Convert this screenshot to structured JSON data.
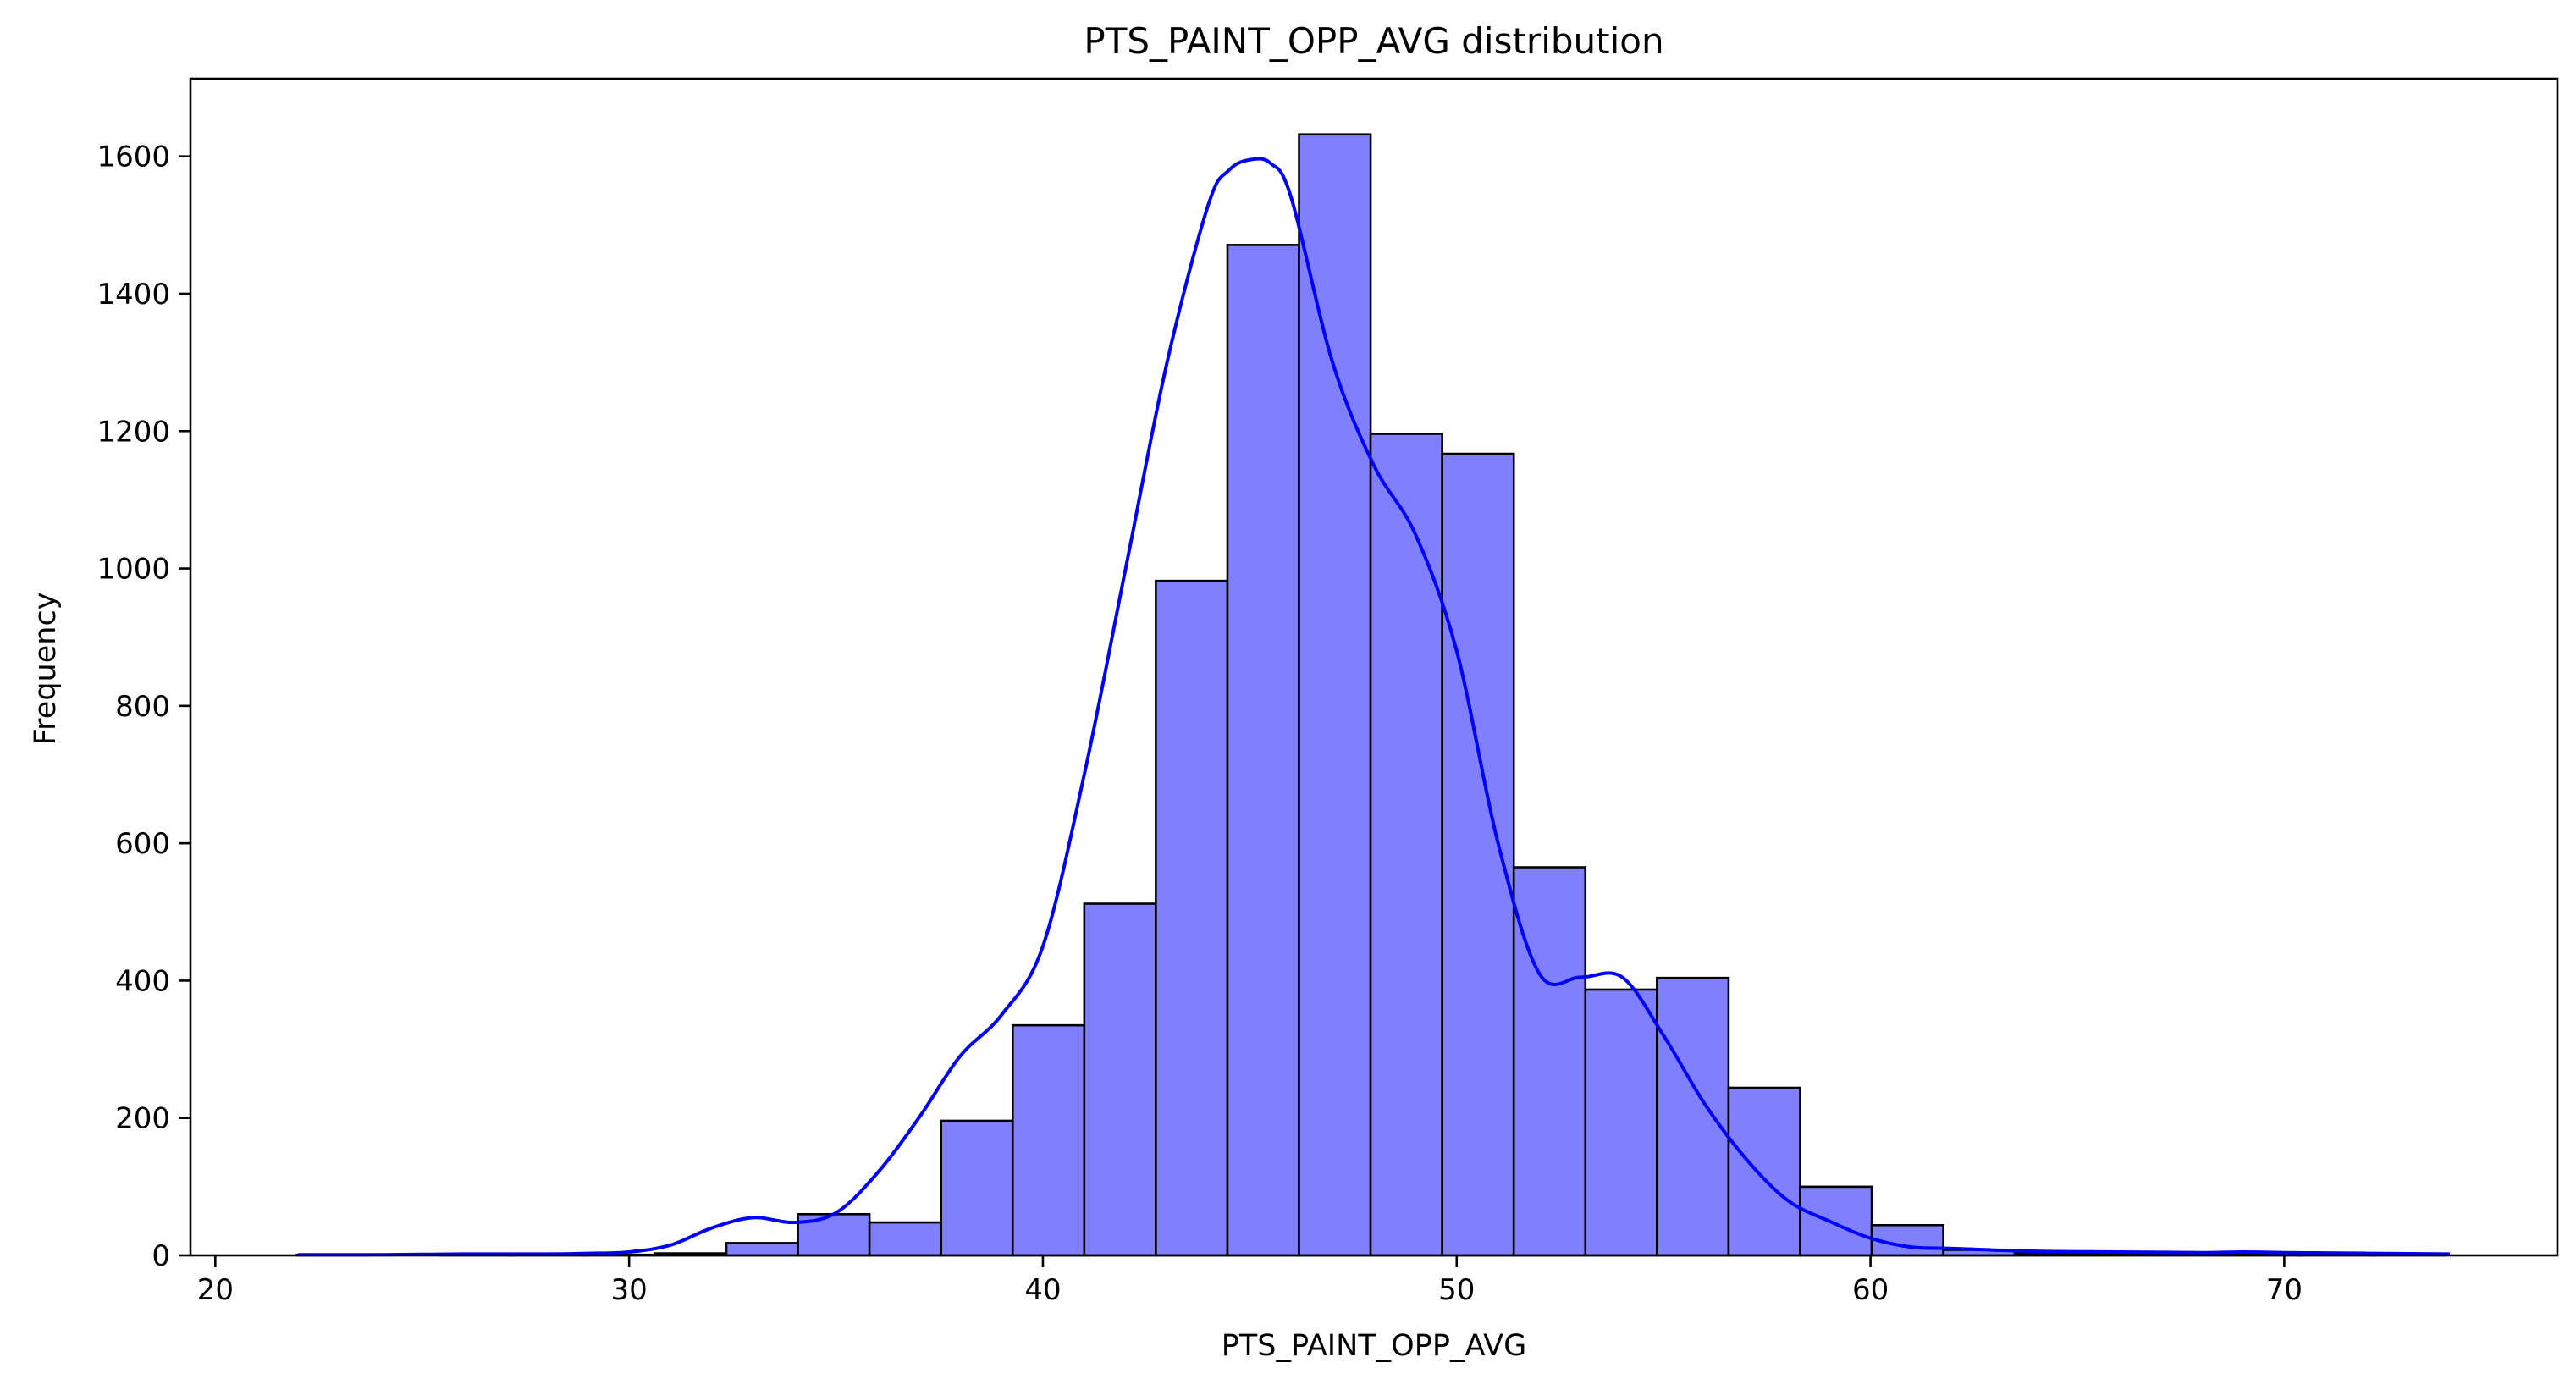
{
  "chart_data": {
    "type": "bar",
    "title": "PTS_PAINT_OPP_AVG distribution",
    "xlabel": "PTS_PAINT_OPP_AVG",
    "ylabel": "Frequency",
    "xlim": [
      19.4,
      76.6
    ],
    "ylim": [
      0,
      1713
    ],
    "x_ticks": [
      20,
      30,
      40,
      50,
      60,
      70
    ],
    "y_ticks": [
      0,
      200,
      400,
      600,
      800,
      1000,
      1200,
      1400,
      1600
    ],
    "grid": false,
    "legend": "none",
    "bin_edges": [
      21.97,
      23.7,
      25.43,
      27.16,
      28.89,
      30.62,
      32.35,
      34.08,
      35.81,
      37.54,
      39.27,
      41.0,
      42.73,
      44.46,
      46.19,
      47.92,
      49.65,
      51.38,
      53.11,
      54.84,
      56.57,
      58.3,
      60.03,
      61.76,
      63.49,
      65.22,
      66.95,
      68.68,
      70.41,
      72.14,
      73.87
    ],
    "values": [
      1,
      0,
      1,
      1,
      1,
      3,
      18,
      60,
      48,
      196,
      335,
      512,
      982,
      1471,
      1632,
      1196,
      1167,
      565,
      387,
      404,
      244,
      100,
      44,
      8,
      3,
      2,
      1,
      1,
      2,
      1
    ],
    "kde": {
      "x": [
        22,
        24,
        26,
        28,
        29,
        30,
        31,
        32,
        33,
        34,
        35,
        36,
        37,
        38,
        39,
        40,
        41,
        42,
        43,
        44,
        44.5,
        45,
        45.5,
        46,
        47,
        48,
        49,
        50,
        51,
        52,
        53,
        54,
        55,
        56,
        57,
        58,
        59,
        60,
        61,
        62,
        64,
        66,
        68,
        69,
        70,
        72,
        74
      ],
      "y": [
        1,
        1,
        2,
        2,
        3,
        5,
        15,
        40,
        55,
        48,
        62,
        120,
        200,
        290,
        350,
        450,
        700,
        1000,
        1300,
        1530,
        1580,
        1595,
        1590,
        1540,
        1300,
        1150,
        1050,
        880,
        600,
        410,
        405,
        405,
        320,
        220,
        140,
        80,
        50,
        25,
        12,
        10,
        6,
        5,
        4,
        5,
        4,
        3,
        2
      ]
    },
    "colors": {
      "bar_fill": "#8080ff",
      "bar_edge": "#000000",
      "kde_line": "#0000ff"
    }
  }
}
